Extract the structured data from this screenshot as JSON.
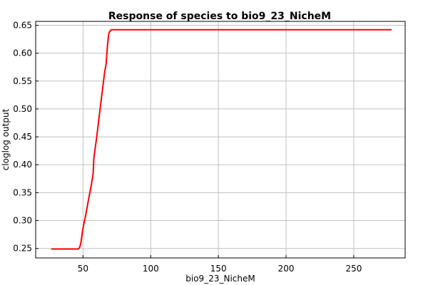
{
  "chart_data": {
    "type": "line",
    "title": "Response of species to bio9_23_NicheM",
    "xlabel": "bio9_23_NicheM",
    "ylabel": "cloglog output",
    "xlim": [
      15,
      288
    ],
    "ylim": [
      0.233,
      0.657
    ],
    "xticks": [
      50,
      100,
      150,
      200,
      250
    ],
    "yticks": [
      0.25,
      0.3,
      0.35,
      0.4,
      0.45,
      0.5,
      0.55,
      0.6,
      0.65
    ],
    "ytick_labels": [
      "0.25",
      "0.30",
      "0.35",
      "0.40",
      "0.45",
      "0.50",
      "0.55",
      "0.60",
      "0.65"
    ],
    "grid": true,
    "series": [
      {
        "color": "#ff0000",
        "x": [
          26.5,
          46.5,
          47.5,
          48.0,
          48.5,
          49.0,
          49.5,
          50.5,
          52.0,
          54.0,
          56.0,
          57.5,
          58.0,
          60.0,
          62.0,
          64.0,
          66.0,
          67.0,
          67.5,
          68.0,
          68.5,
          69.0,
          70.0,
          71.0,
          278.0
        ],
        "y": [
          0.249,
          0.249,
          0.252,
          0.256,
          0.262,
          0.27,
          0.28,
          0.293,
          0.31,
          0.337,
          0.362,
          0.385,
          0.412,
          0.448,
          0.488,
          0.528,
          0.567,
          0.58,
          0.595,
          0.612,
          0.625,
          0.635,
          0.64,
          0.642,
          0.642
        ]
      }
    ]
  }
}
